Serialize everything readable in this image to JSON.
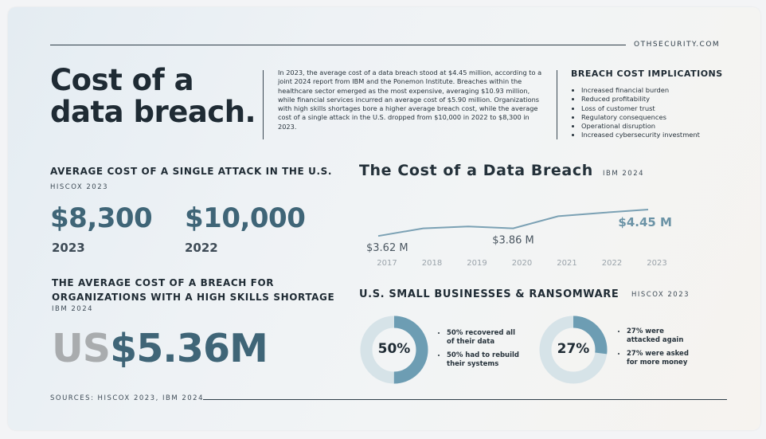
{
  "site": "OTHSECURITY.COM",
  "title_line1": "Cost of a",
  "title_line2": "data breach.",
  "intro": "In 2023, the average cost of a data breach stood at $4.45 million, according to a joint 2024 report from IBM and the Ponemon Institute. Breaches within the healthcare sector emerged as the most expensive, averaging $10.93 million, while financial services incurred an average cost of $5.90 million. Organizations with high skills shortages bore a higher average breach cost, while the average cost of a single attack in the U.S. dropped from $10,000 in 2022 to $8,300 in 2023.",
  "implications": {
    "title": "BREACH COST IMPLICATIONS",
    "items": [
      "Increased financial burden",
      "Reduced profitability",
      "Loss of customer trust",
      "Regulatory consequences",
      "Operational disruption",
      "Increased cybersecurity investment"
    ]
  },
  "single_attack": {
    "title": "AVERAGE COST OF A SINGLE ATTACK IN THE U.S.",
    "source": "HISCOX 2023",
    "value_2023": "$8,300",
    "year_2023": "2023",
    "value_2022": "$10,000",
    "year_2022": "2022"
  },
  "skills": {
    "title_line1": "THE AVERAGE COST OF A BREACH FOR",
    "title_line2": "ORGANIZATIONS WITH A HIGH SKILLS SHORTAGE",
    "source": "IBM 2024",
    "prefix": "US",
    "value": "$5.36M"
  },
  "breach_chart": {
    "title": "The Cost of a Data Breach",
    "source": "IBM 2024"
  },
  "ransomware": {
    "title": "U.S. SMALL BUSINESSES & RANSOMWARE",
    "source": "HISCOX 2023",
    "donut1": {
      "label": "50%",
      "value": 50,
      "bullets": [
        "50% recovered all of their data",
        "50% had to rebuild their systems"
      ]
    },
    "donut2": {
      "label": "27%",
      "value": 27,
      "bullets": [
        "27% were attacked again",
        "27% were asked for more money"
      ]
    }
  },
  "sources": "SOURCES: HISCOX 2023, IBM 2024",
  "colors": {
    "accent": "#3f6577",
    "line": "#7ba1b4",
    "donut_fill": "#6d9db3",
    "donut_track": "#d6e3e8",
    "grey_prefix": "#a9acae"
  },
  "chart_data": {
    "type": "line",
    "title": "The Cost of a Data Breach",
    "categories": [
      "2017",
      "2018",
      "2019",
      "2020",
      "2021",
      "2022",
      "2023"
    ],
    "values": [
      3.62,
      3.86,
      3.92,
      3.86,
      4.24,
      4.35,
      4.45
    ],
    "ylim": [
      3.0,
      5.0
    ],
    "data_labels": [
      {
        "index": 0,
        "text": "$3.62 M"
      },
      {
        "index": 3,
        "text": "$3.86 M"
      },
      {
        "index": 6,
        "text": "$4.45 M"
      }
    ],
    "grid": false
  }
}
